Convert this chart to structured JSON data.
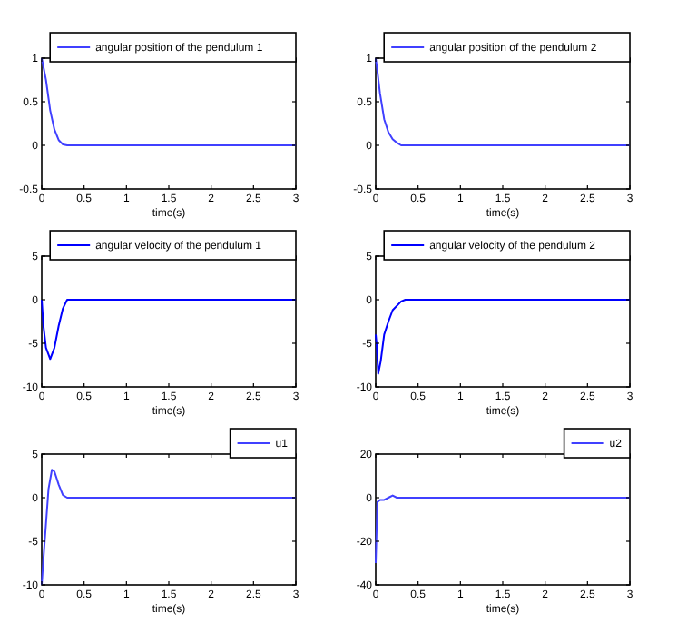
{
  "chart_data": [
    {
      "type": "line",
      "xlabel": "time(s)",
      "xlim": [
        0,
        3
      ],
      "xticks": [
        0,
        0.5,
        1,
        1.5,
        2,
        2.5,
        3
      ],
      "ylim": [
        -0.5,
        1
      ],
      "yticks": [
        -0.5,
        0,
        0.5,
        1
      ],
      "legend": "top right",
      "series": [
        {
          "name": "angular position of the pendulum 1",
          "color": "#4040ff",
          "x": [
            0,
            0.05,
            0.1,
            0.15,
            0.2,
            0.25,
            0.3,
            3
          ],
          "values": [
            1,
            0.75,
            0.4,
            0.18,
            0.06,
            0.01,
            0,
            0
          ]
        }
      ]
    },
    {
      "type": "line",
      "xlabel": "time(s)",
      "xlim": [
        0,
        3
      ],
      "xticks": [
        0,
        0.5,
        1,
        1.5,
        2,
        2.5,
        3
      ],
      "ylim": [
        -0.5,
        1
      ],
      "yticks": [
        -0.5,
        0,
        0.5,
        1
      ],
      "legend": "top right",
      "series": [
        {
          "name": "angular position of the pendulum 2",
          "color": "#4040ff",
          "x": [
            0,
            0.02,
            0.05,
            0.1,
            0.15,
            0.2,
            0.25,
            0.3,
            3
          ],
          "values": [
            1,
            0.85,
            0.6,
            0.3,
            0.15,
            0.07,
            0.03,
            0,
            0
          ]
        }
      ]
    },
    {
      "type": "line",
      "xlabel": "time(s)",
      "xlim": [
        0,
        3
      ],
      "xticks": [
        0,
        0.5,
        1,
        1.5,
        2,
        2.5,
        3
      ],
      "ylim": [
        -10,
        5
      ],
      "yticks": [
        -10,
        -5,
        0,
        5
      ],
      "legend": "top right",
      "series": [
        {
          "name": "angular velocity of the pendulum 1",
          "color": "#0000ff",
          "x": [
            0,
            0.02,
            0.05,
            0.1,
            0.15,
            0.2,
            0.25,
            0.3,
            3
          ],
          "values": [
            0,
            -3,
            -5.5,
            -6.8,
            -5.5,
            -3,
            -1,
            0,
            0
          ]
        }
      ]
    },
    {
      "type": "line",
      "xlabel": "time(s)",
      "xlim": [
        0,
        3
      ],
      "xticks": [
        0,
        0.5,
        1,
        1.5,
        2,
        2.5,
        3
      ],
      "ylim": [
        -10,
        5
      ],
      "yticks": [
        -10,
        -5,
        0,
        5
      ],
      "legend": "top right",
      "series": [
        {
          "name": "angular velocity of the pendulum 2",
          "color": "#0000ff",
          "x": [
            0,
            0.01,
            0.03,
            0.06,
            0.1,
            0.15,
            0.2,
            0.3,
            0.35,
            3
          ],
          "values": [
            -4,
            -5,
            -8.5,
            -7,
            -4,
            -2.5,
            -1.2,
            -0.2,
            0,
            0
          ]
        }
      ]
    },
    {
      "type": "line",
      "xlabel": "time(s)",
      "xlim": [
        0,
        3
      ],
      "xticks": [
        0,
        0.5,
        1,
        1.5,
        2,
        2.5,
        3
      ],
      "ylim": [
        -10,
        5
      ],
      "yticks": [
        -10,
        -5,
        0,
        5
      ],
      "legend": "top right",
      "series": [
        {
          "name": "u1",
          "color": "#4040ff",
          "x": [
            0,
            0.02,
            0.05,
            0.08,
            0.12,
            0.15,
            0.2,
            0.25,
            0.3,
            3
          ],
          "values": [
            -10,
            -7,
            -3,
            1,
            3.2,
            3,
            1.5,
            0.3,
            0,
            0
          ]
        }
      ]
    },
    {
      "type": "line",
      "xlabel": "time(s)",
      "xlim": [
        0,
        3
      ],
      "xticks": [
        0,
        0.5,
        1,
        1.5,
        2,
        2.5,
        3
      ],
      "ylim": [
        -40,
        20
      ],
      "yticks": [
        -40,
        -20,
        0,
        20
      ],
      "legend": "top right",
      "series": [
        {
          "name": "u2",
          "color": "#4040ff",
          "x": [
            0,
            0.02,
            0.05,
            0.1,
            0.15,
            0.2,
            0.25,
            3
          ],
          "values": [
            -30,
            -2,
            -1,
            -1,
            0,
            1,
            0,
            0
          ]
        }
      ]
    }
  ]
}
